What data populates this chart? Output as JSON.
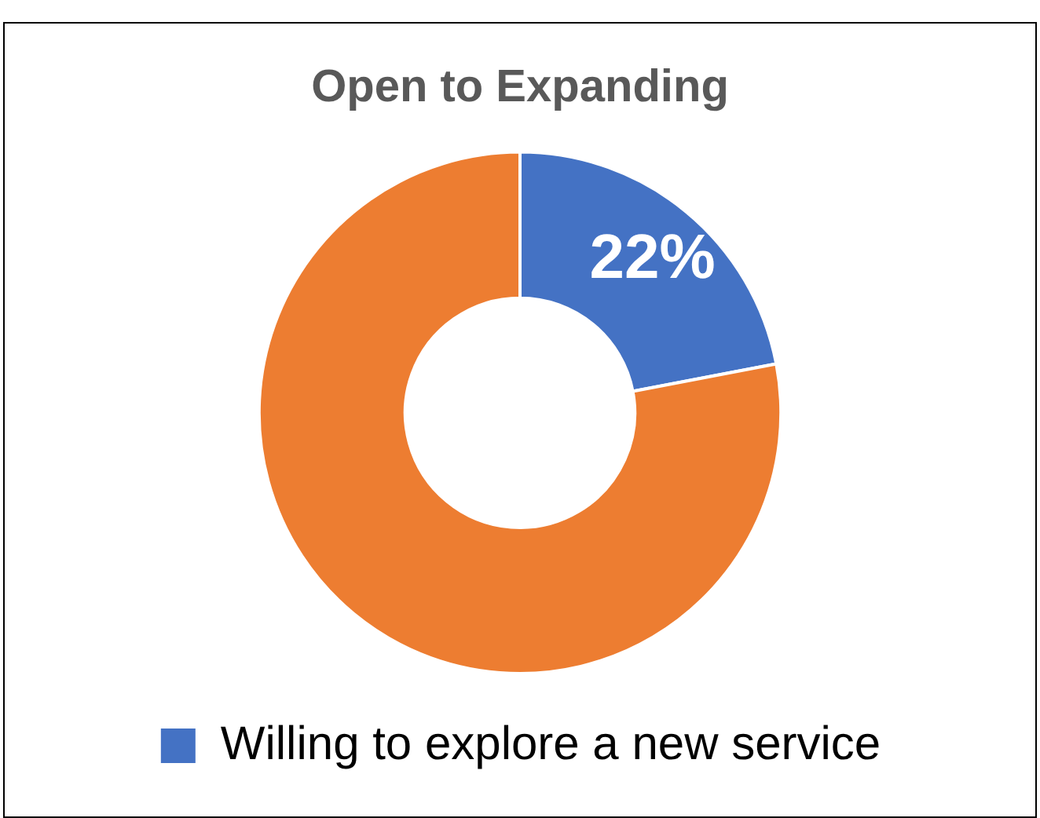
{
  "chart_data": {
    "type": "donut",
    "title": "Open to Expanding",
    "categories": [
      "Willing to explore a new service",
      null
    ],
    "values": [
      22,
      78
    ],
    "colors": [
      "#4472c4",
      "#ed7d31"
    ],
    "value_labels": [
      "22%",
      null
    ],
    "legend": "bottom"
  }
}
